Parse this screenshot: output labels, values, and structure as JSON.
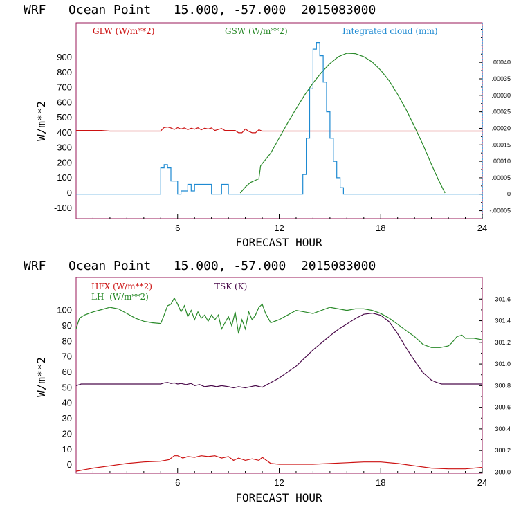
{
  "chart_data": [
    {
      "type": "line",
      "title": "WRF   Ocean Point   15.000, -57.000  2015083000",
      "xlabel": "FORECAST HOUR",
      "ylabel": "W/m**2",
      "xlim": [
        0,
        24
      ],
      "ylim": [
        -170,
        1130
      ],
      "xticks": [
        6,
        12,
        18,
        24
      ],
      "yticks": [
        -100,
        0,
        100,
        200,
        300,
        400,
        500,
        600,
        700,
        800,
        900
      ],
      "right_axis": {
        "ylim": [
          -7.4e-05,
          0.00052
        ],
        "ticks": [
          -5e-05,
          0,
          5e-05,
          0.0001,
          0.00015,
          0.0002,
          0.00025,
          0.0003,
          0.00035,
          0.0004
        ],
        "tick_labels": [
          "-.00005",
          "0",
          ".00005",
          ".00010",
          ".00015",
          ".00020",
          ".00025",
          ".00030",
          ".00035",
          ".00040"
        ]
      },
      "legend": [
        {
          "label": "GLW (W/m**2)",
          "color": "#cc1111"
        },
        {
          "label": "GSW (W/m**2)",
          "color": "#2a8a2a"
        },
        {
          "label": "Integrated cloud (mm)",
          "color": "#1e8ad2"
        }
      ],
      "series": [
        {
          "name": "GLW (W/m**2)",
          "color": "#cc1111",
          "axis": "left",
          "step": false,
          "x": [
            0,
            1.5,
            2,
            3,
            4,
            5,
            5.1,
            5.2,
            5.4,
            5.6,
            5.8,
            6,
            6.2,
            6.4,
            6.6,
            6.8,
            7,
            7.2,
            7.4,
            7.6,
            7.8,
            8,
            8.2,
            8.4,
            8.6,
            8.8,
            9,
            9.4,
            9.6,
            9.8,
            10,
            10.2,
            10.4,
            10.6,
            10.8,
            11,
            12,
            14,
            16,
            18,
            20,
            24
          ],
          "y": [
            415,
            415,
            411,
            411,
            411,
            411,
            425,
            435,
            438,
            432,
            422,
            434,
            425,
            432,
            421,
            430,
            424,
            433,
            420,
            431,
            425,
            432,
            415,
            422,
            428,
            415,
            415,
            415,
            400,
            400,
            425,
            410,
            400,
            400,
            420,
            411,
            411,
            411,
            411,
            411,
            411,
            411
          ]
        },
        {
          "name": "GSW (W/m**2)",
          "color": "#2a8a2a",
          "axis": "left",
          "step": false,
          "x": [
            9.7,
            10,
            10.3,
            10.6,
            10.8,
            10.9,
            11,
            11.5,
            12,
            12.5,
            13,
            13.5,
            14,
            14.5,
            15,
            15.5,
            16,
            16.5,
            17,
            17.5,
            18,
            18.5,
            19,
            19.5,
            20,
            20.5,
            21,
            21.4,
            21.8
          ],
          "y": [
            0,
            40,
            70,
            85,
            95,
            180,
            195,
            265,
            365,
            465,
            560,
            650,
            730,
            800,
            860,
            905,
            928,
            925,
            905,
            870,
            815,
            745,
            655,
            555,
            440,
            320,
            190,
            90,
            0
          ]
        },
        {
          "name": "Integrated cloud (mm)",
          "color": "#1e8ad2",
          "axis": "right",
          "step": true,
          "x": [
            0,
            5,
            5.2,
            5.4,
            5.6,
            5.8,
            6,
            6.2,
            6.4,
            6.6,
            6.8,
            7,
            7.2,
            7.4,
            7.6,
            7.8,
            8,
            8.2,
            8.4,
            8.6,
            8.8,
            9,
            9.2,
            13.4,
            13.6,
            13.8,
            14,
            14.2,
            14.4,
            14.6,
            14.8,
            15,
            15.2,
            15.4,
            15.6,
            15.8,
            16,
            24
          ],
          "y": [
            0,
            8e-05,
            9e-05,
            8e-05,
            4e-05,
            4e-05,
            0,
            1e-05,
            1e-05,
            3e-05,
            1e-05,
            3e-05,
            3e-05,
            3e-05,
            3e-05,
            3e-05,
            0,
            0,
            0,
            3e-05,
            3e-05,
            0,
            0,
            6e-05,
            0.00017,
            0.00032,
            0.00044,
            0.00046,
            0.00042,
            0.00034,
            0.00025,
            0.00017,
            0.0001,
            5e-05,
            2e-05,
            0,
            0,
            0
          ]
        }
      ]
    },
    {
      "type": "line",
      "title": "WRF   Ocean Point   15.000, -57.000  2015083000",
      "xlabel": "FORECAST HOUR",
      "ylabel": "W/m**2",
      "xlim": [
        0,
        24
      ],
      "ylim": [
        -5.3,
        121.3
      ],
      "xticks": [
        6,
        12,
        18,
        24
      ],
      "yticks": [
        0,
        10,
        20,
        30,
        40,
        50,
        60,
        70,
        80,
        90,
        100
      ],
      "right_axis": {
        "ylim": [
          299.99,
          301.8
        ],
        "ticks": [
          300.0,
          300.2,
          300.4,
          300.6,
          300.8,
          301.0,
          301.2,
          301.4,
          301.6
        ],
        "tick_labels": [
          "300.0",
          "300.2",
          "300.4",
          "300.6",
          "300.8",
          "301.0",
          "301.2",
          "301.4",
          "301.6"
        ]
      },
      "legend": [
        {
          "label": "HFX (W/m**2)",
          "color": "#cc1111"
        },
        {
          "label": "LH  (W/m**2)",
          "color": "#2a8a2a"
        },
        {
          "label": "TSK (K)",
          "color": "#4a0a4a"
        }
      ],
      "series": [
        {
          "name": "HFX (W/m**2)",
          "color": "#cc1111",
          "axis": "left",
          "step": false,
          "x": [
            0,
            0.5,
            1,
            2,
            3,
            4,
            5,
            5.5,
            5.8,
            6,
            6.3,
            6.6,
            7,
            7.4,
            7.8,
            8.2,
            8.6,
            9,
            9.3,
            9.6,
            10,
            10.4,
            10.8,
            11,
            11.5,
            12,
            14,
            16,
            17,
            18,
            19,
            20,
            21,
            22,
            23,
            24
          ],
          "y": [
            -4,
            -3,
            -2,
            -0.5,
            1,
            2,
            2.5,
            3.5,
            6,
            6,
            4.5,
            5.5,
            5,
            6,
            5.5,
            6,
            4.5,
            5.5,
            3,
            4.5,
            3,
            4,
            3,
            5,
            1,
            0.5,
            0.5,
            1.5,
            2,
            2,
            1,
            -0.5,
            -2,
            -2.5,
            -2.5,
            -1.5
          ]
        },
        {
          "name": "LH  (W/m**2)",
          "color": "#2a8a2a",
          "axis": "left",
          "step": false,
          "x": [
            0,
            0.2,
            0.5,
            1,
            1.5,
            2,
            2.5,
            3,
            3.5,
            4,
            4.5,
            5,
            5.2,
            5.4,
            5.6,
            5.8,
            6,
            6.2,
            6.4,
            6.6,
            6.8,
            7,
            7.2,
            7.4,
            7.6,
            7.8,
            8,
            8.2,
            8.4,
            8.6,
            8.8,
            9,
            9.2,
            9.4,
            9.6,
            9.8,
            10,
            10.2,
            10.4,
            10.6,
            10.8,
            11,
            11.2,
            11.5,
            12,
            12.5,
            13,
            13.5,
            14,
            14.5,
            15,
            15.5,
            16,
            16.5,
            17,
            17.5,
            18,
            18.5,
            19,
            19.5,
            20,
            20.5,
            21,
            21.5,
            22,
            22.2,
            22.5,
            22.8,
            23,
            23.5,
            24
          ],
          "y": [
            88,
            95,
            97,
            99,
            100.5,
            102,
            101,
            98,
            95,
            93,
            92,
            91.5,
            97,
            103,
            104,
            108,
            104,
            99,
            103,
            96,
            100,
            94,
            99,
            95,
            97,
            93,
            97,
            94,
            97,
            88,
            92,
            96,
            90,
            99,
            85,
            94,
            88,
            99,
            94,
            97,
            102,
            104,
            98,
            92,
            94,
            97,
            100,
            99,
            98,
            100,
            102,
            101,
            100,
            101,
            101,
            100,
            98,
            95,
            91,
            87,
            83,
            78,
            76,
            76,
            77,
            79,
            83,
            84,
            82,
            82,
            81
          ]
        },
        {
          "name": "TSK (K)",
          "color": "#4a0a4a",
          "axis": "right",
          "step": false,
          "x": [
            0,
            0.3,
            1,
            2,
            3,
            4,
            5,
            5.2,
            5.4,
            5.6,
            5.8,
            6,
            6.2,
            6.5,
            6.8,
            7,
            7.3,
            7.6,
            8,
            8.3,
            8.6,
            9,
            9.3,
            9.6,
            10,
            10.3,
            10.6,
            11,
            12,
            13,
            14,
            15,
            15.5,
            16,
            16.5,
            17,
            17.5,
            18,
            18.5,
            19,
            19.5,
            20,
            20.5,
            21,
            21.3,
            21.6,
            22,
            23,
            24
          ],
          "y": [
            300.8,
            300.815,
            300.815,
            300.815,
            300.815,
            300.815,
            300.815,
            300.825,
            300.83,
            300.82,
            300.825,
            300.815,
            300.82,
            300.81,
            300.82,
            300.8,
            300.81,
            300.79,
            300.8,
            300.79,
            300.8,
            300.79,
            300.78,
            300.79,
            300.78,
            300.79,
            300.8,
            300.785,
            300.87,
            300.98,
            301.13,
            301.26,
            301.32,
            301.37,
            301.42,
            301.46,
            301.47,
            301.45,
            301.39,
            301.28,
            301.15,
            301.03,
            300.92,
            300.85,
            300.83,
            300.815,
            300.815,
            300.815,
            300.815
          ]
        }
      ]
    }
  ]
}
